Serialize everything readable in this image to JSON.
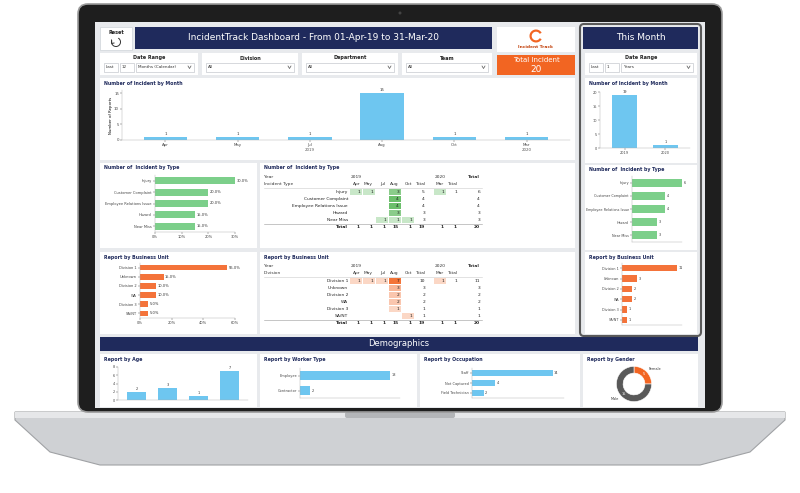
{
  "header": {
    "reset": "Reset",
    "title": "IncidentTrack Dashboard - From 01-Apr-19 to 31-Mar-20",
    "logo": "Incident Track",
    "total_label": "Total Incident",
    "total": 20
  },
  "filters": [
    {
      "label": "Date Range",
      "values": [
        "Last",
        "12",
        "Months (Calendar)"
      ]
    },
    {
      "label": "Division",
      "values": [
        "All"
      ]
    },
    {
      "label": "Department",
      "values": [
        "All"
      ]
    },
    {
      "label": "Team",
      "values": [
        "All"
      ]
    }
  ],
  "this_month": {
    "title": "This Month",
    "filter": {
      "label": "Date Range",
      "values": [
        "Last",
        "1",
        "Years"
      ]
    }
  },
  "section": "Demographics",
  "chart_data": [
    {
      "type": "bar",
      "title": "Number of Incident by Month",
      "categories": [
        "Apr",
        "May",
        "Jul",
        "Aug",
        "Oct",
        "Mar"
      ],
      "years": [
        "2019",
        "2019",
        "2019",
        "2019",
        "2019",
        "2020"
      ],
      "values": [
        1,
        1,
        1,
        15,
        1,
        1
      ],
      "color": "#6ec6f0",
      "y_label": "Number of Reports",
      "ylim": [
        0,
        16
      ],
      "yticks": [
        0,
        5,
        10,
        15
      ],
      "data_labels": true
    },
    {
      "type": "bar",
      "orientation": "horizontal",
      "title": "Number of  Incident by Type",
      "categories": [
        "Injury",
        "Customer Complaint",
        "Employee Relations Issue",
        "Hazard",
        "Near Miss"
      ],
      "values": [
        30,
        20,
        20,
        15,
        15
      ],
      "value_labels": [
        "30.0%",
        "20.0%",
        "20.0%",
        "15.0%",
        "15.0%"
      ],
      "color": "#7ccf8a",
      "xlim": [
        0,
        30
      ],
      "xticks": [
        {
          "value": 0,
          "label": "0%"
        },
        {
          "value": 10,
          "label": "10%"
        },
        {
          "value": 20,
          "label": "20%"
        },
        {
          "value": 30,
          "label": "30%"
        }
      ],
      "data_labels": true
    },
    {
      "type": "bar",
      "orientation": "horizontal",
      "title": "Report by Business Unit",
      "categories": [
        "Division 1",
        "Unknown",
        "Division 2",
        "WA",
        "Division 3",
        "SA/NT"
      ],
      "values": [
        55,
        15,
        10,
        10,
        5,
        5
      ],
      "value_labels": [
        "55.0%",
        "15.0%",
        "10.0%",
        "10.0%",
        "5.0%",
        "5.0%"
      ],
      "color": "#f4733a",
      "xlim": [
        0,
        60
      ],
      "xticks": [
        {
          "value": 0,
          "label": "0%"
        },
        {
          "value": 20,
          "label": "20%"
        },
        {
          "value": 40,
          "label": "40%"
        },
        {
          "value": 60,
          "label": "60%"
        }
      ],
      "data_labels": true
    },
    {
      "type": "bar",
      "title": "Number of Incident by Month",
      "categories": [
        "2019",
        "2020"
      ],
      "values": [
        19,
        1
      ],
      "color": "#6ec6f0",
      "ylim": [
        0,
        20
      ],
      "yticks": [
        0,
        5,
        10,
        15,
        20
      ],
      "data_labels": true
    },
    {
      "type": "bar",
      "orientation": "horizontal",
      "title": "Number of  Incident by Type",
      "categories": [
        "Injury",
        "Customer Complaint",
        "Employee Relations Issue",
        "Hazard",
        "Near Miss"
      ],
      "values": [
        6,
        4,
        4,
        3,
        3
      ],
      "color": "#7ccf8a",
      "xlim": [
        0,
        6
      ],
      "tick_labels": "y",
      "data_labels": true
    },
    {
      "type": "bar",
      "orientation": "horizontal",
      "title": "Report by Business Unit",
      "categories": [
        "Division 1",
        "Unknown",
        "Division 2",
        "WA",
        "Division 3",
        "SA/NT"
      ],
      "values": [
        11,
        3,
        2,
        2,
        1,
        1
      ],
      "color": "#f4733a",
      "xlim": [
        0,
        12
      ],
      "tick_labels": "y",
      "data_labels": true
    },
    {
      "type": "bar",
      "title": "Report by Age",
      "categories": [
        null,
        null,
        null,
        null
      ],
      "values": [
        2,
        3,
        1,
        7
      ],
      "color": "#6ec6f0",
      "ylim": [
        0,
        8
      ],
      "yticks": [
        0,
        2,
        4,
        6,
        8
      ],
      "tick_labels": "y",
      "data_labels": true
    },
    {
      "type": "bar",
      "orientation": "horizontal",
      "title": "Report by Worker Type",
      "categories": [
        "Employee",
        "Contractor"
      ],
      "values": [
        18,
        2
      ],
      "color": "#6ec6f0",
      "xlim": [
        0,
        20
      ],
      "tick_labels": "y",
      "data_labels": true
    },
    {
      "type": "bar",
      "orientation": "horizontal",
      "title": "Report by Occupation",
      "categories": [
        "Staff",
        "Not Captured",
        "Field Technician"
      ],
      "values": [
        14,
        4,
        2
      ],
      "color": "#6ec6f0",
      "xlim": [
        0,
        16
      ],
      "tick_labels": "y",
      "data_labels": true
    },
    {
      "type": "pie",
      "title": "Report by Gender",
      "categories": [
        "Female",
        "Male"
      ],
      "values": [
        5,
        15
      ],
      "colors": [
        "#f26522",
        "#595959"
      ],
      "data_labels": true
    }
  ],
  "tables": [
    {
      "title": "Number of  Incident by Type",
      "year_label": "Year",
      "row_label": "Incident Type",
      "grand_total": "Total",
      "color": "#5cb85c",
      "groups": [
        {
          "year": "2019",
          "columns": [
            "Apr",
            "May",
            "Jul",
            "Aug",
            "Oct",
            "Total"
          ]
        },
        {
          "year": "2020",
          "columns": [
            "Mar",
            "Total"
          ]
        }
      ],
      "rows": [
        {
          "label": "Injury",
          "cells": [
            1,
            1,
            null,
            3,
            null,
            5,
            1,
            1,
            6
          ]
        },
        {
          "label": "Customer Complaint",
          "cells": [
            null,
            null,
            null,
            4,
            null,
            4,
            null,
            null,
            4
          ]
        },
        {
          "label": "Employee Relations Issue",
          "cells": [
            null,
            null,
            null,
            4,
            null,
            4,
            null,
            null,
            4
          ]
        },
        {
          "label": "Hazard",
          "cells": [
            null,
            null,
            null,
            3,
            null,
            3,
            null,
            null,
            3
          ]
        },
        {
          "label": "Near Miss",
          "cells": [
            null,
            null,
            1,
            1,
            1,
            3,
            null,
            null,
            3
          ]
        },
        {
          "label": "Total",
          "cells": [
            1,
            1,
            1,
            15,
            1,
            19,
            1,
            1,
            20
          ]
        }
      ]
    },
    {
      "title": "Report by Business Unit",
      "year_label": "Year",
      "row_label": "Division",
      "grand_total": "Total",
      "color": "#f26522",
      "groups": [
        {
          "year": "2019",
          "columns": [
            "Apr",
            "May",
            "Jul",
            "Aug",
            "Oct",
            "Total"
          ]
        },
        {
          "year": "2020",
          "columns": [
            "Mar",
            "Total"
          ]
        }
      ],
      "rows": [
        {
          "label": "Division 1",
          "cells": [
            1,
            1,
            1,
            7,
            null,
            10,
            1,
            1,
            11
          ]
        },
        {
          "label": "Unknown",
          "cells": [
            null,
            null,
            null,
            3,
            null,
            3,
            null,
            null,
            3
          ]
        },
        {
          "label": "Division 2",
          "cells": [
            null,
            null,
            null,
            2,
            null,
            2,
            null,
            null,
            2
          ]
        },
        {
          "label": "WA",
          "cells": [
            null,
            null,
            null,
            2,
            null,
            2,
            null,
            null,
            2
          ]
        },
        {
          "label": "Division 3",
          "cells": [
            null,
            null,
            null,
            1,
            null,
            1,
            null,
            null,
            1
          ]
        },
        {
          "label": "SA/NT",
          "cells": [
            null,
            null,
            null,
            null,
            1,
            1,
            null,
            null,
            1
          ]
        },
        {
          "label": "Total",
          "cells": [
            1,
            1,
            1,
            15,
            1,
            19,
            1,
            1,
            20
          ]
        }
      ]
    }
  ]
}
